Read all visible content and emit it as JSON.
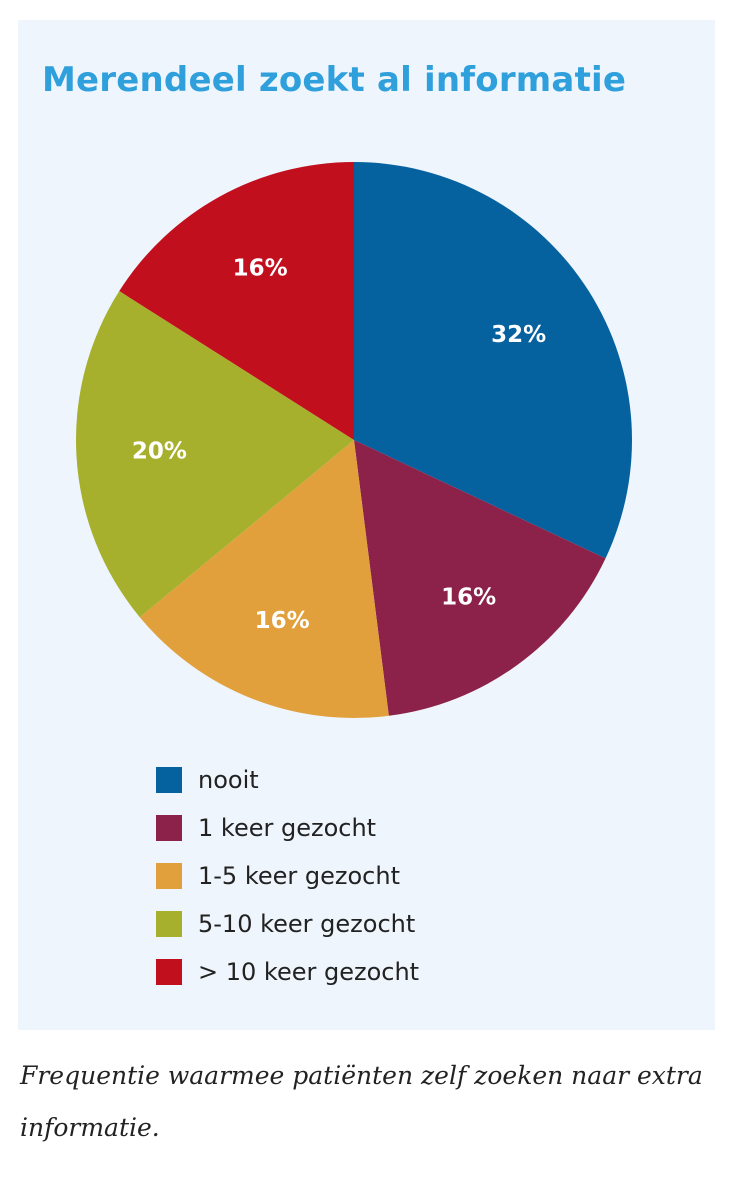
{
  "chart_data": {
    "type": "pie",
    "title": "Merendeel zoekt al informatie",
    "slices": [
      {
        "label": "nooit",
        "value": 32,
        "value_label": "32%",
        "color": "#06629f"
      },
      {
        "label": "1 keer gezocht",
        "value": 16,
        "value_label": "16%",
        "color": "#8c2249"
      },
      {
        "label": "1-5 keer gezocht",
        "value": 16,
        "value_label": "16%",
        "color": "#e2a03c"
      },
      {
        "label": "5-10 keer gezocht",
        "value": 20,
        "value_label": "20%",
        "color": "#a6b02d"
      },
      {
        "label": "> 10 keer gezocht",
        "value": 16,
        "value_label": "16%",
        "color": "#c20f1d"
      }
    ],
    "start_angle": "12 o'clock",
    "direction": "clockwise",
    "legend_position": "bottom"
  },
  "caption": "Frequentie waarmee patiënten zelf zoeken naar extra informatie.",
  "colors": {
    "title": "#2fa0dc",
    "panel_background": "#eef5fc",
    "text": "#222222",
    "slice_label": "#ffffff"
  }
}
